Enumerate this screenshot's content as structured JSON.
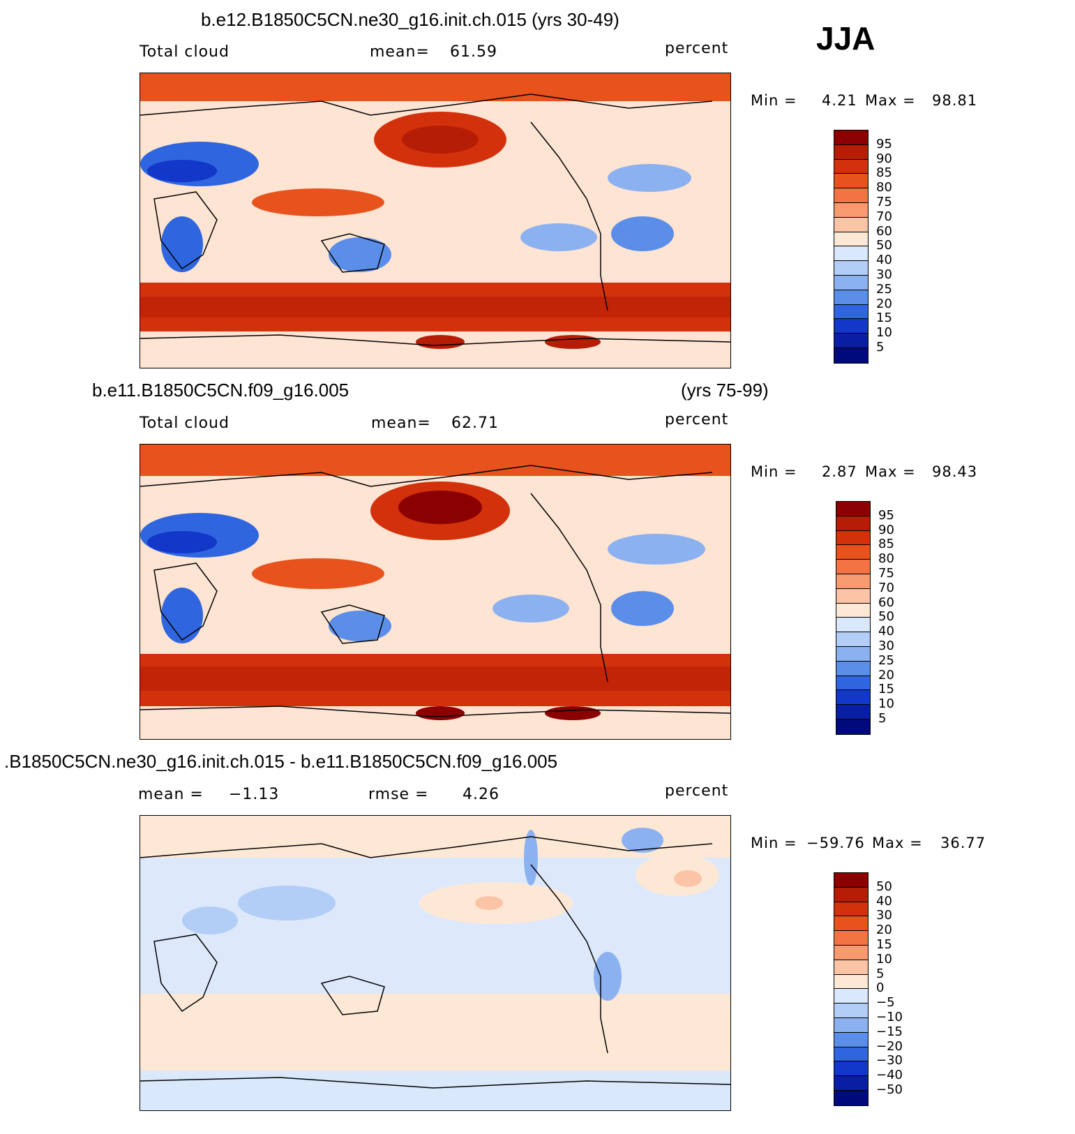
{
  "season": "JJA",
  "units": "percent",
  "panels": [
    {
      "title": "b.e12.B1850C5CN.ne30_g16.init.ch.015 (yrs 30-49)",
      "title_right": "",
      "left_label": "Total cloud",
      "center_label": "mean=",
      "center_value": "61.59",
      "units": "percent",
      "min_label": "Min =",
      "min_value": "4.21",
      "max_label": "Max =",
      "max_value": "98.81",
      "levels": [
        "95",
        "90",
        "85",
        "80",
        "75",
        "70",
        "60",
        "50",
        "40",
        "30",
        "25",
        "20",
        "15",
        "10",
        "5"
      ]
    },
    {
      "title": "b.e11.B1850C5CN.f09_g16.005",
      "title_right": "(yrs 75-99)",
      "left_label": "Total cloud",
      "center_label": "mean=",
      "center_value": "62.71",
      "units": "percent",
      "min_label": "Min =",
      "min_value": "2.87",
      "max_label": "Max =",
      "max_value": "98.43",
      "levels": [
        "95",
        "90",
        "85",
        "80",
        "75",
        "70",
        "60",
        "50",
        "40",
        "30",
        "25",
        "20",
        "15",
        "10",
        "5"
      ]
    },
    {
      "title": ".B1850C5CN.ne30_g16.init.ch.015 - b.e11.B1850C5CN.f09_g16.005",
      "title_right": "",
      "left_label": "mean =",
      "left_value": "−1.13",
      "center_label": "rmse =",
      "center_value": "4.26",
      "units": "percent",
      "min_label": "Min =",
      "min_value": "−59.76",
      "max_label": "Max =",
      "max_value": "36.77",
      "levels": [
        "50",
        "40",
        "30",
        "20",
        "15",
        "10",
        "5",
        "0",
        "−5",
        "−10",
        "−15",
        "−20",
        "−30",
        "−40",
        "−50"
      ]
    }
  ],
  "colors": {
    "scale": [
      "#8b0000",
      "#b51d06",
      "#d3310b",
      "#e8521c",
      "#f27444",
      "#f79a70",
      "#fbc4a6",
      "#fde8d6",
      "#d9e8fb",
      "#b2cdf6",
      "#8cb1f0",
      "#5a8ee8",
      "#2f66df",
      "#1237c9",
      "#0a1ea3",
      "#000a7a"
    ]
  }
}
